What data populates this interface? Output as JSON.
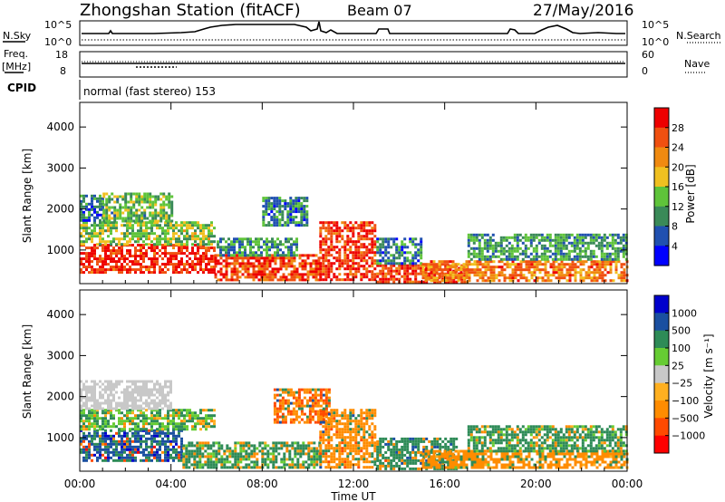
{
  "header": {
    "station_title": "Zhongshan Station (fitACF)",
    "beam": "Beam 07",
    "date": "27/May/2016"
  },
  "status_panel": {
    "nsky_label": "N.Sky",
    "nsky_ticks": [
      "10^5",
      "10^0"
    ],
    "nsearch_label": "N.Search",
    "nsearch_ticks": [
      "10^5",
      "10^0"
    ],
    "freq_label_top": "Freq.",
    "freq_label_unit": "[MHz]",
    "freq_ticks": [
      "18",
      "8"
    ],
    "nave_label": "Nave",
    "nave_ticks": [
      "60",
      "0"
    ],
    "cpid_label": "CPID",
    "cpid_value": "normal (fast stereo) 153"
  },
  "colors": {
    "power_scale": [
      "#0000ff",
      "#2050b0",
      "#3a8a58",
      "#5fc43a",
      "#f0c020",
      "#f08a10",
      "#f05010",
      "#ee0000"
    ],
    "velocity_scale": [
      "#ff0000",
      "#ff4a00",
      "#ff8c00",
      "#ffb020",
      "#c8c8c8",
      "#66cc33",
      "#2e8b57",
      "#1a4fa0",
      "#0000cc"
    ]
  },
  "chart_data": [
    {
      "type": "heatmap",
      "name": "power",
      "ylabel": "Slant Range [km]",
      "y_ticks": [
        1000,
        2000,
        3000,
        4000
      ],
      "ylim": [
        180,
        4600
      ],
      "xlim": [
        0,
        24
      ],
      "colorbar": {
        "label": "Power [dB]",
        "ticks": [
          "4",
          "8",
          "12",
          "16",
          "20",
          "24",
          "28"
        ],
        "range": [
          0,
          30
        ]
      },
      "series": [
        {
          "t0": 0,
          "t1": 5.9,
          "r0": 450,
          "r1": 1150,
          "value": 27
        },
        {
          "t0": 0,
          "t1": 5.9,
          "r0": 1150,
          "r1": 1700,
          "value": 14
        },
        {
          "t0": 0,
          "t1": 1.0,
          "r0": 1700,
          "r1": 2350,
          "value": 8
        },
        {
          "t0": 1.0,
          "t1": 4.0,
          "r0": 1700,
          "r1": 2400,
          "value": 12
        },
        {
          "t0": 5.9,
          "t1": 10.5,
          "r0": 300,
          "r1": 900,
          "value": 25
        },
        {
          "t0": 6.0,
          "t1": 9.5,
          "r0": 900,
          "r1": 1300,
          "value": 10
        },
        {
          "t0": 10.5,
          "t1": 13.0,
          "r0": 300,
          "r1": 1700,
          "value": 26
        },
        {
          "t0": 13.0,
          "t1": 17.0,
          "r0": 250,
          "r1": 650,
          "value": 26
        },
        {
          "t0": 13.0,
          "t1": 15.0,
          "r0": 650,
          "r1": 1300,
          "value": 8
        },
        {
          "t0": 15.0,
          "t1": 24.0,
          "r0": 250,
          "r1": 750,
          "value": 22
        },
        {
          "t0": 17.0,
          "t1": 24.0,
          "r0": 750,
          "r1": 1400,
          "value": 10
        },
        {
          "t0": 8.0,
          "t1": 10.0,
          "r0": 1600,
          "r1": 2300,
          "value": 8
        }
      ]
    },
    {
      "type": "heatmap",
      "name": "velocity",
      "ylabel": "Slant Range [km]",
      "y_ticks": [
        1000,
        2000,
        3000,
        4000
      ],
      "ylim": [
        180,
        4600
      ],
      "xlim": [
        0,
        24
      ],
      "xlabel": "Time UT",
      "x_ticks": [
        "00:00",
        "04:00",
        "08:00",
        "12:00",
        "16:00",
        "20:00",
        "00:00"
      ],
      "colorbar": {
        "label": "Velocity [m s⁻¹]",
        "ticks": [
          "1000",
          "500",
          "100",
          "25",
          "−25",
          "−100",
          "−500",
          "−1000"
        ]
      },
      "series": [
        {
          "t0": 0,
          "t1": 4.5,
          "r0": 450,
          "r1": 1200,
          "value": 600
        },
        {
          "t0": 0,
          "t1": 5.9,
          "r0": 1200,
          "r1": 1700,
          "value": 100
        },
        {
          "t0": 0,
          "t1": 4.0,
          "r0": 1700,
          "r1": 2400,
          "value": 10
        },
        {
          "t0": 4.5,
          "t1": 10.5,
          "r0": 250,
          "r1": 900,
          "value": 150
        },
        {
          "t0": 10.5,
          "t1": 13.0,
          "r0": 300,
          "r1": 1700,
          "value": -300
        },
        {
          "t0": 13.0,
          "t1": 16.5,
          "r0": 250,
          "r1": 1000,
          "value": 300
        },
        {
          "t0": 15.0,
          "t1": 24.0,
          "r0": 250,
          "r1": 700,
          "value": -200
        },
        {
          "t0": 17.0,
          "t1": 24.0,
          "r0": 700,
          "r1": 1300,
          "value": 150
        },
        {
          "t0": 8.5,
          "t1": 11.0,
          "r0": 1400,
          "r1": 2200,
          "value": -400
        }
      ]
    }
  ]
}
